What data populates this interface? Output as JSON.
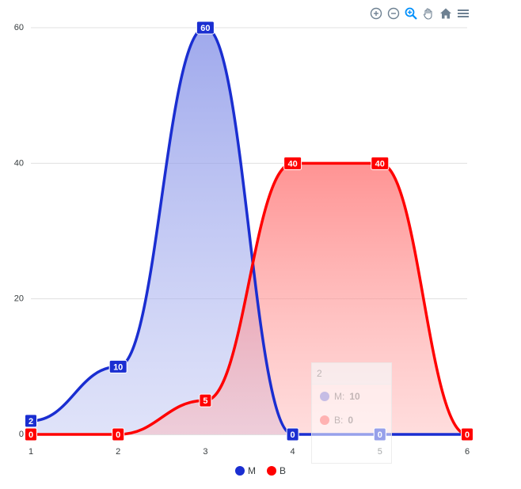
{
  "chart_data": {
    "type": "area",
    "x": [
      1,
      2,
      3,
      4,
      5,
      6
    ],
    "series": [
      {
        "name": "M",
        "values": [
          2,
          10,
          60,
          0,
          0,
          0
        ],
        "color": "#1a2ed1"
      },
      {
        "name": "B",
        "values": [
          0,
          0,
          5,
          40,
          40,
          0
        ],
        "color": "#ff0000"
      }
    ],
    "ylim": [
      0,
      60
    ],
    "xlim": [
      1,
      6
    ],
    "yticks": [
      0,
      20,
      40,
      60
    ],
    "xticks": [
      1,
      2,
      3,
      4,
      5,
      6
    ],
    "grid": "horizontal",
    "legend": "bottom-center",
    "data_labels": true,
    "curve": "smooth"
  },
  "toolbar": {
    "icons": [
      "zoom-in-icon",
      "zoom-out-icon",
      "zoom-selection-icon",
      "pan-icon",
      "reset-home-icon",
      "menu-icon"
    ]
  },
  "tooltip": {
    "title": "2",
    "rows": [
      {
        "name": "M:",
        "value": "10",
        "color": "#1a2ed1"
      },
      {
        "name": "B:",
        "value": "0",
        "color": "#ff0000"
      }
    ]
  }
}
